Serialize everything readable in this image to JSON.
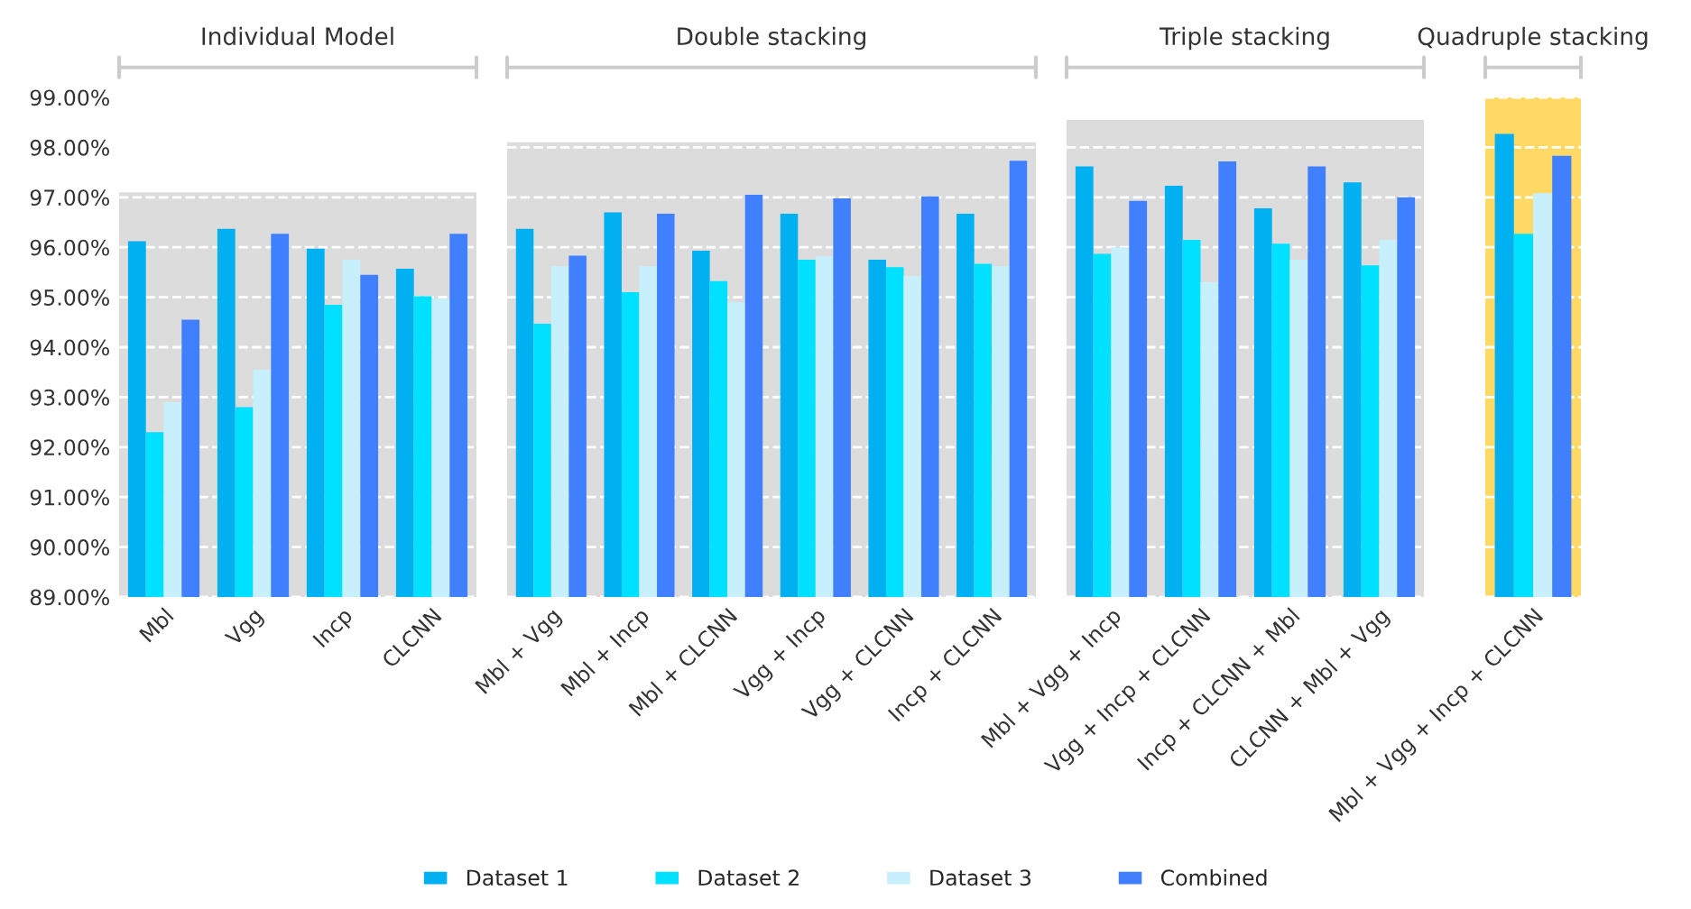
{
  "chart_data": [
    {
      "type": "bar",
      "title": "Individual Model",
      "categories": [
        "Mbl",
        "Vgg",
        "Incp",
        "CLCNN"
      ],
      "series": [
        {
          "name": "Dataset 1",
          "color": "#00b0f0",
          "values": [
            96.12,
            96.37,
            95.97,
            95.57
          ]
        },
        {
          "name": "Dataset 2",
          "color": "#00e0ff",
          "values": [
            92.3,
            92.8,
            94.85,
            95.02
          ]
        },
        {
          "name": "Dataset 3",
          "color": "#c8f0fc",
          "values": [
            92.9,
            93.55,
            95.75,
            94.97
          ]
        },
        {
          "name": "Combined",
          "color": "#4080ff",
          "values": [
            94.55,
            96.27,
            95.45,
            96.27
          ]
        }
      ],
      "ylim": [
        89,
        99
      ],
      "bands": [
        {
          "axis": "y",
          "from": 89,
          "to": 97.1,
          "color": "#dcdcdc"
        }
      ],
      "yticks": [
        {
          "value": 89,
          "label": "89.00%"
        },
        {
          "value": 90,
          "label": "90.00%"
        },
        {
          "value": 91,
          "label": "91.00%"
        },
        {
          "value": 92,
          "label": "92.00%"
        },
        {
          "value": 93,
          "label": "93.00%"
        },
        {
          "value": 94,
          "label": "94.00%"
        },
        {
          "value": 95,
          "label": "95.00%"
        },
        {
          "value": 96,
          "label": "96.00%"
        },
        {
          "value": 97,
          "label": "97.00%"
        },
        {
          "value": 98,
          "label": "98.00%"
        },
        {
          "value": 99,
          "label": "99.00%"
        }
      ],
      "grid": "y",
      "legend": "bottom"
    },
    {
      "type": "bar",
      "title": "Double stacking",
      "categories": [
        "Mbl + Vgg",
        "Mbl + Incp",
        "Mbl + CLCNN",
        "Vgg + Incp",
        "Vgg + CLCNN",
        "Incp + CLCNN"
      ],
      "series": [
        {
          "color": "#00b0f0",
          "values": [
            96.37,
            96.7,
            95.93,
            96.67,
            95.75,
            96.67
          ]
        },
        {
          "color": "#00e0ff",
          "values": [
            94.47,
            95.1,
            95.32,
            95.75,
            95.6,
            95.67
          ]
        },
        {
          "color": "#c8f0fc",
          "values": [
            95.62,
            95.62,
            94.9,
            95.82,
            95.42,
            95.62
          ]
        },
        {
          "color": "#4080ff",
          "values": [
            95.83,
            96.67,
            97.05,
            96.98,
            97.02,
            97.73
          ]
        }
      ],
      "ylim": [
        89,
        99
      ],
      "tick_labels": "x",
      "bands": [
        {
          "axis": "y",
          "from": 89,
          "to": 98.1,
          "color": "#dcdcdc"
        }
      ],
      "grid": "y"
    },
    {
      "type": "bar",
      "title": "Triple stacking",
      "categories": [
        "Mbl + Vgg + Incp",
        "Vgg + Incp + CLCNN",
        "Incp + CLCNN + Mbl",
        "CLCNN + Mbl + Vgg"
      ],
      "series": [
        {
          "color": "#00b0f0",
          "values": [
            97.62,
            97.23,
            96.78,
            97.3
          ]
        },
        {
          "color": "#00e0ff",
          "values": [
            95.87,
            96.15,
            96.07,
            95.64
          ]
        },
        {
          "color": "#c8f0fc",
          "values": [
            96.0,
            95.3,
            95.75,
            96.15
          ]
        },
        {
          "color": "#4080ff",
          "values": [
            96.93,
            97.72,
            97.62,
            97.0
          ]
        }
      ],
      "ylim": [
        89,
        99
      ],
      "tick_labels": "x",
      "bands": [
        {
          "axis": "y",
          "from": 89,
          "to": 98.55,
          "color": "#dcdcdc"
        }
      ],
      "grid": "y"
    },
    {
      "type": "bar",
      "title": "Quadruple stacking",
      "categories": [
        "Mbl + Vgg + Incp + CLCNN"
      ],
      "series": [
        {
          "color": "#00b0f0",
          "values": [
            98.27
          ]
        },
        {
          "color": "#00e0ff",
          "values": [
            96.27
          ]
        },
        {
          "color": "#c8f0fc",
          "values": [
            97.08
          ]
        },
        {
          "color": "#4080ff",
          "values": [
            97.83
          ]
        }
      ],
      "ylim": [
        89,
        99
      ],
      "tick_labels": "x",
      "bands": [
        {
          "axis": "y",
          "from": 89,
          "to": 99,
          "color": "#ffd966"
        }
      ],
      "grid": "y"
    }
  ]
}
